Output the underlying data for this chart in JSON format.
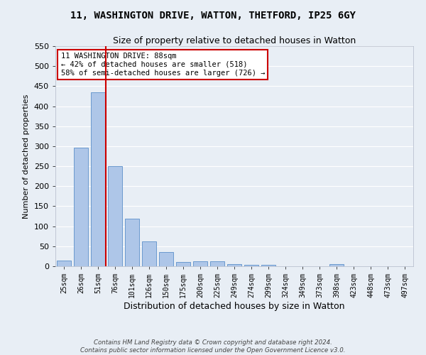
{
  "title1": "11, WASHINGTON DRIVE, WATTON, THETFORD, IP25 6GY",
  "title2": "Size of property relative to detached houses in Watton",
  "xlabel": "Distribution of detached houses by size in Watton",
  "ylabel": "Number of detached properties",
  "categories": [
    "25sqm",
    "26sqm",
    "51sqm",
    "76sqm",
    "101sqm",
    "126sqm",
    "150sqm",
    "175sqm",
    "200sqm",
    "225sqm",
    "249sqm",
    "274sqm",
    "299sqm",
    "324sqm",
    "349sqm",
    "373sqm",
    "398sqm",
    "423sqm",
    "448sqm",
    "473sqm",
    "497sqm"
  ],
  "values": [
    15,
    297,
    434,
    250,
    118,
    62,
    35,
    10,
    12,
    12,
    5,
    4,
    3,
    0,
    0,
    0,
    5,
    0,
    0,
    0,
    0
  ],
  "bar_color": "#aec6e8",
  "bar_edge_color": "#5b8fc9",
  "bg_color": "#e8eef5",
  "grid_color": "#ffffff",
  "vline_color": "#cc0000",
  "annotation_text": "11 WASHINGTON DRIVE: 88sqm\n← 42% of detached houses are smaller (518)\n58% of semi-detached houses are larger (726) →",
  "annotation_box_color": "#ffffff",
  "annotation_box_edge": "#cc0000",
  "ylim": [
    0,
    550
  ],
  "yticks": [
    0,
    50,
    100,
    150,
    200,
    250,
    300,
    350,
    400,
    450,
    500,
    550
  ],
  "footer1": "Contains HM Land Registry data © Crown copyright and database right 2024.",
  "footer2": "Contains public sector information licensed under the Open Government Licence v3.0."
}
